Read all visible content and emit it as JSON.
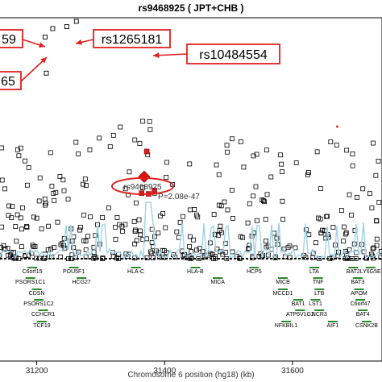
{
  "chart_data": {
    "type": "scatter",
    "title": "rs9468925 ( JPT+CHB )",
    "xlabel": "Chromosome 6 position (hg18) (kb)",
    "xlim": [
      31140,
      31740
    ],
    "ylim": [
      0,
      1
    ],
    "x_ticks": [
      "31200",
      "31400",
      "31600"
    ],
    "x_tick_values": [
      31200,
      31400,
      31600
    ],
    "lead_snp": {
      "name": "rs9468925",
      "x": 31368,
      "p_value_label": "P=2.08e-47"
    },
    "callouts": [
      {
        "label": "rs1265181",
        "x": 31262
      },
      {
        "label": "rs10484554",
        "x": 31382
      },
      {
        "label": "59"
      },
      {
        "label": "65"
      }
    ],
    "top_points": [
      {
        "x": 31213,
        "y": 0.92
      },
      {
        "x": 31225,
        "y": 0.955
      },
      {
        "x": 31247,
        "y": 0.963
      },
      {
        "x": 31262,
        "y": 0.985
      },
      {
        "x": 31340,
        "y": 0.895
      },
      {
        "x": 31382,
        "y": 0.9
      },
      {
        "x": 31215,
        "y": 0.77
      }
    ],
    "red_points": [
      {
        "x": 31368,
        "y": 0.34
      },
      {
        "x": 31372,
        "y": 0.445
      },
      {
        "x": 31364,
        "y": 0.272
      },
      {
        "x": 31375,
        "y": 0.269
      },
      {
        "x": 31384,
        "y": 0.283
      },
      {
        "x": 31670,
        "y": 0.548
      }
    ],
    "genes": [
      {
        "name": "C6orf15",
        "x": 31193,
        "row": 0
      },
      {
        "name": "PSORS1C1",
        "x": 31190,
        "row": 1
      },
      {
        "name": "CDSN",
        "x": 31200,
        "row": 2
      },
      {
        "name": "PSORS1C2",
        "x": 31203,
        "row": 3
      },
      {
        "name": "CCHCR1",
        "x": 31210,
        "row": 4
      },
      {
        "name": "TCF19",
        "x": 31208,
        "row": 5
      },
      {
        "name": "POU5F1",
        "x": 31258,
        "row": 0
      },
      {
        "name": "HCG27",
        "x": 31270,
        "row": 1
      },
      {
        "name": "HLA-C",
        "x": 31355,
        "row": 0
      },
      {
        "name": "HLA-B",
        "x": 31448,
        "row": 0
      },
      {
        "name": "MICA",
        "x": 31483,
        "row": 1
      },
      {
        "name": "HCP5",
        "x": 31540,
        "row": 0
      },
      {
        "name": "MICB",
        "x": 31585,
        "row": 1
      },
      {
        "name": "MCCD1",
        "x": 31585,
        "row": 2
      },
      {
        "name": "LTA",
        "x": 31634,
        "row": 0
      },
      {
        "name": "TNF",
        "x": 31640,
        "row": 1
      },
      {
        "name": "LTB",
        "x": 31642,
        "row": 2
      },
      {
        "name": "BAT1",
        "x": 31609,
        "row": 3
      },
      {
        "name": "LST1",
        "x": 31636,
        "row": 3
      },
      {
        "name": "ATP6V1G2",
        "x": 31612,
        "row": 4
      },
      {
        "name": "NCR3",
        "x": 31642,
        "row": 4
      },
      {
        "name": "NFKBIL1",
        "x": 31590,
        "row": 5
      },
      {
        "name": "AIF1",
        "x": 31663,
        "row": 5
      },
      {
        "name": "BAT2",
        "x": 31695,
        "row": 0
      },
      {
        "name": "LY6G5E",
        "x": 31722,
        "row": 0
      },
      {
        "name": "BAT3",
        "x": 31702,
        "row": 1
      },
      {
        "name": "APOM",
        "x": 31704,
        "row": 2
      },
      {
        "name": "C6orf47",
        "x": 31706,
        "row": 3
      },
      {
        "name": "BAT4",
        "x": 31710,
        "row": 4
      },
      {
        "name": "CSNK2B",
        "x": 31716,
        "row": 5
      }
    ]
  }
}
